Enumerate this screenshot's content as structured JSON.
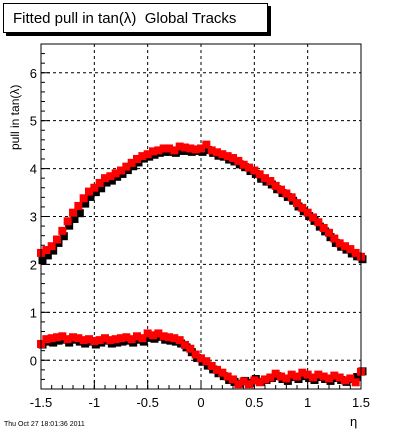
{
  "title": "Fitted pull in tan(λ)  Global Tracks",
  "timestamp": "Thu Oct 27 18:01:36 2011",
  "chart_data": {
    "type": "scatter",
    "title": "Fitted pull in tan(λ)  Global Tracks",
    "xlabel": "η",
    "ylabel": "pull in tan(λ)",
    "xlim": [
      -1.5,
      1.5
    ],
    "ylim": [
      -0.6,
      6.6
    ],
    "grid": true,
    "x_ticks": [
      "-1.5",
      "-1",
      "-0.5",
      "0",
      "0.5",
      "1",
      "1.5"
    ],
    "y_ticks": [
      "0",
      "1",
      "2",
      "3",
      "4",
      "5",
      "6"
    ],
    "x_tick_values": [
      -1.5,
      -1,
      -0.5,
      0,
      0.5,
      1,
      1.5
    ],
    "y_tick_values": [
      0,
      1,
      2,
      3,
      4,
      5,
      6
    ],
    "series": [
      {
        "color": "#000000",
        "marker": "square",
        "x": [
          -1.5,
          -1.45,
          -1.4,
          -1.35,
          -1.3,
          -1.25,
          -1.2,
          -1.15,
          -1.1,
          -1.05,
          -1.0,
          -0.95,
          -0.9,
          -0.85,
          -0.8,
          -0.75,
          -0.7,
          -0.65,
          -0.6,
          -0.55,
          -0.5,
          -0.45,
          -0.4,
          -0.35,
          -0.3,
          -0.25,
          -0.2,
          -0.15,
          -0.1,
          -0.05,
          0.0,
          0.05,
          0.1,
          0.15,
          0.2,
          0.25,
          0.3,
          0.35,
          0.4,
          0.45,
          0.5,
          0.55,
          0.6,
          0.65,
          0.7,
          0.75,
          0.8,
          0.85,
          0.9,
          0.95,
          1.0,
          1.05,
          1.1,
          1.15,
          1.2,
          1.25,
          1.3,
          1.35,
          1.4,
          1.45,
          1.5
        ],
        "y": [
          2.12,
          2.22,
          2.32,
          2.48,
          2.62,
          2.84,
          2.98,
          3.1,
          3.3,
          3.44,
          3.54,
          3.62,
          3.74,
          3.78,
          3.86,
          3.92,
          4.0,
          4.08,
          4.16,
          4.24,
          4.28,
          4.32,
          4.36,
          4.38,
          4.38,
          4.36,
          4.4,
          4.4,
          4.38,
          4.4,
          4.38,
          4.42,
          4.36,
          4.3,
          4.28,
          4.22,
          4.18,
          4.12,
          4.06,
          3.98,
          3.92,
          3.82,
          3.76,
          3.7,
          3.6,
          3.52,
          3.44,
          3.36,
          3.24,
          3.14,
          3.04,
          2.94,
          2.82,
          2.72,
          2.6,
          2.48,
          2.4,
          2.34,
          2.26,
          2.2,
          2.14
        ]
      },
      {
        "color": "#ff0000",
        "marker": "square",
        "x": [
          -1.5,
          -1.45,
          -1.4,
          -1.35,
          -1.3,
          -1.25,
          -1.2,
          -1.15,
          -1.1,
          -1.05,
          -1.0,
          -0.95,
          -0.9,
          -0.85,
          -0.8,
          -0.75,
          -0.7,
          -0.65,
          -0.6,
          -0.55,
          -0.5,
          -0.45,
          -0.4,
          -0.35,
          -0.3,
          -0.25,
          -0.2,
          -0.15,
          -0.1,
          -0.05,
          0.0,
          0.05,
          0.1,
          0.15,
          0.2,
          0.25,
          0.3,
          0.35,
          0.4,
          0.45,
          0.5,
          0.55,
          0.6,
          0.65,
          0.7,
          0.75,
          0.8,
          0.85,
          0.9,
          0.95,
          1.0,
          1.05,
          1.1,
          1.15,
          1.2,
          1.25,
          1.3,
          1.35,
          1.4,
          1.45,
          1.5
        ],
        "y": [
          2.24,
          2.3,
          2.38,
          2.52,
          2.7,
          2.9,
          3.08,
          3.22,
          3.38,
          3.52,
          3.6,
          3.7,
          3.8,
          3.84,
          3.9,
          3.96,
          4.04,
          4.12,
          4.2,
          4.26,
          4.3,
          4.36,
          4.38,
          4.42,
          4.42,
          4.38,
          4.46,
          4.44,
          4.42,
          4.4,
          4.42,
          4.5,
          4.38,
          4.34,
          4.3,
          4.26,
          4.22,
          4.16,
          4.08,
          4.02,
          3.96,
          3.88,
          3.8,
          3.74,
          3.64,
          3.56,
          3.48,
          3.4,
          3.28,
          3.18,
          3.08,
          2.98,
          2.88,
          2.76,
          2.66,
          2.54,
          2.44,
          2.38,
          2.32,
          2.24,
          2.16
        ]
      },
      {
        "color": "#000000",
        "marker": "square",
        "x": [
          -1.5,
          -1.45,
          -1.4,
          -1.35,
          -1.3,
          -1.25,
          -1.2,
          -1.15,
          -1.1,
          -1.05,
          -1.0,
          -0.95,
          -0.9,
          -0.85,
          -0.8,
          -0.75,
          -0.7,
          -0.65,
          -0.6,
          -0.55,
          -0.5,
          -0.45,
          -0.4,
          -0.35,
          -0.3,
          -0.25,
          -0.2,
          -0.15,
          -0.1,
          -0.05,
          0.0,
          0.05,
          0.1,
          0.15,
          0.2,
          0.25,
          0.3,
          0.35,
          0.4,
          0.45,
          0.5,
          0.55,
          0.6,
          0.65,
          0.7,
          0.75,
          0.8,
          0.85,
          0.9,
          0.95,
          1.0,
          1.05,
          1.1,
          1.15,
          1.2,
          1.25,
          1.3,
          1.35,
          1.4,
          1.45,
          1.5
        ],
        "y": [
          0.36,
          0.42,
          0.4,
          0.44,
          0.46,
          0.4,
          0.46,
          0.42,
          0.38,
          0.42,
          0.36,
          0.4,
          0.44,
          0.38,
          0.4,
          0.42,
          0.44,
          0.4,
          0.46,
          0.42,
          0.5,
          0.48,
          0.52,
          0.46,
          0.44,
          0.42,
          0.38,
          0.3,
          0.2,
          0.08,
          0.0,
          -0.08,
          -0.16,
          -0.24,
          -0.3,
          -0.38,
          -0.42,
          -0.46,
          -0.4,
          -0.44,
          -0.36,
          -0.42,
          -0.38,
          -0.34,
          -0.3,
          -0.36,
          -0.4,
          -0.32,
          -0.36,
          -0.3,
          -0.34,
          -0.38,
          -0.32,
          -0.36,
          -0.4,
          -0.34,
          -0.38,
          -0.42,
          -0.36,
          -0.32,
          -0.2
        ]
      },
      {
        "color": "#ff0000",
        "marker": "square",
        "x": [
          -1.5,
          -1.45,
          -1.4,
          -1.35,
          -1.3,
          -1.25,
          -1.2,
          -1.15,
          -1.1,
          -1.05,
          -1.0,
          -0.95,
          -0.9,
          -0.85,
          -0.8,
          -0.75,
          -0.7,
          -0.65,
          -0.6,
          -0.55,
          -0.5,
          -0.45,
          -0.4,
          -0.35,
          -0.3,
          -0.25,
          -0.2,
          -0.15,
          -0.1,
          -0.05,
          0.0,
          0.05,
          0.1,
          0.15,
          0.2,
          0.25,
          0.3,
          0.35,
          0.4,
          0.45,
          0.5,
          0.55,
          0.6,
          0.65,
          0.7,
          0.75,
          0.8,
          0.85,
          0.9,
          0.95,
          1.0,
          1.05,
          1.1,
          1.15,
          1.2,
          1.25,
          1.3,
          1.35,
          1.4,
          1.45,
          1.5
        ],
        "y": [
          0.34,
          0.44,
          0.46,
          0.48,
          0.5,
          0.44,
          0.48,
          0.46,
          0.42,
          0.44,
          0.4,
          0.42,
          0.46,
          0.42,
          0.44,
          0.46,
          0.48,
          0.44,
          0.5,
          0.46,
          0.56,
          0.52,
          0.56,
          0.5,
          0.48,
          0.46,
          0.42,
          0.32,
          0.24,
          0.12,
          0.04,
          -0.02,
          -0.12,
          -0.2,
          -0.26,
          -0.34,
          -0.4,
          -0.5,
          -0.44,
          -0.5,
          -0.42,
          -0.46,
          -0.4,
          -0.36,
          -0.28,
          -0.34,
          -0.38,
          -0.3,
          -0.34,
          -0.26,
          -0.3,
          -0.36,
          -0.3,
          -0.34,
          -0.38,
          -0.32,
          -0.36,
          -0.42,
          -0.38,
          -0.46,
          -0.24
        ]
      }
    ]
  }
}
